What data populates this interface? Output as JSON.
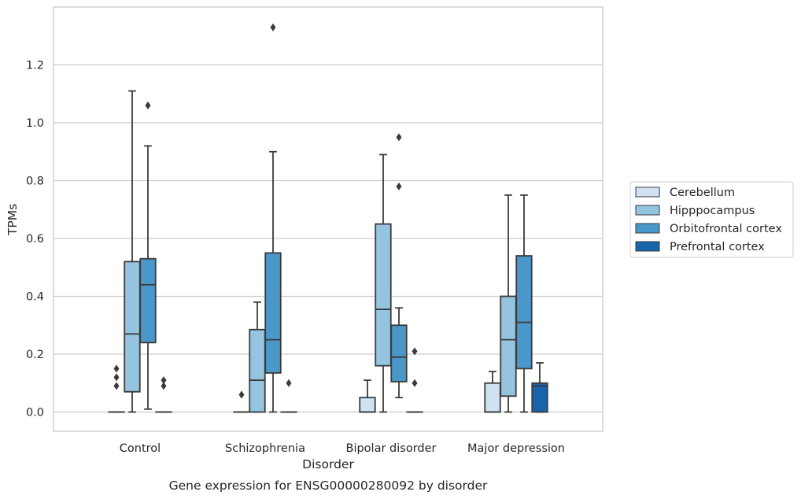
{
  "chart_data": {
    "type": "box",
    "caption": "Gene expression for ENSG00000280092 by disorder",
    "xlabel": "Disorder",
    "ylabel": "TPMs",
    "ylim": [
      -0.065,
      1.4
    ],
    "yticks": [
      0.0,
      0.2,
      0.4,
      0.6,
      0.8,
      1.0,
      1.2
    ],
    "ytick_labels": [
      "0.0",
      "0.2",
      "0.4",
      "0.6",
      "0.8",
      "1.0",
      "1.2"
    ],
    "grid": "horizontal",
    "legend_position": "right",
    "categories": [
      "Control",
      "Schizophrenia",
      "Bipolar disorder",
      "Major depression"
    ],
    "series": [
      {
        "name": "Cerebellum",
        "color": "#d0e1f2",
        "boxes": [
          {
            "category": "Control",
            "whislo": 0.0,
            "q1": 0.0,
            "median": 0.0,
            "q3": 0.0,
            "whishi": 0.0,
            "fliers": [
              0.09,
              0.12,
              0.15
            ]
          },
          {
            "category": "Schizophrenia",
            "whislo": 0.0,
            "q1": 0.0,
            "median": 0.0,
            "q3": 0.0,
            "whishi": 0.0,
            "fliers": [
              0.06
            ]
          },
          {
            "category": "Bipolar disorder",
            "whislo": 0.0,
            "q1": 0.0,
            "median": 0.0,
            "q3": 0.05,
            "whishi": 0.11,
            "fliers": []
          },
          {
            "category": "Major depression",
            "whislo": 0.0,
            "q1": 0.0,
            "median": 0.0,
            "q3": 0.1,
            "whishi": 0.14,
            "fliers": []
          }
        ]
      },
      {
        "name": "Hipppocampus",
        "color": "#94c4df",
        "boxes": [
          {
            "category": "Control",
            "whislo": 0.0,
            "q1": 0.07,
            "median": 0.27,
            "q3": 0.52,
            "whishi": 1.11,
            "fliers": []
          },
          {
            "category": "Schizophrenia",
            "whislo": 0.0,
            "q1": 0.0,
            "median": 0.11,
            "q3": 0.285,
            "whishi": 0.38,
            "fliers": []
          },
          {
            "category": "Bipolar disorder",
            "whislo": 0.0,
            "q1": 0.16,
            "median": 0.355,
            "q3": 0.65,
            "whishi": 0.89,
            "fliers": []
          },
          {
            "category": "Major depression",
            "whislo": 0.0,
            "q1": 0.055,
            "median": 0.25,
            "q3": 0.4,
            "whishi": 0.75,
            "fliers": []
          }
        ]
      },
      {
        "name": "Orbitofrontal cortex",
        "color": "#4a98c9",
        "boxes": [
          {
            "category": "Control",
            "whislo": 0.01,
            "q1": 0.24,
            "median": 0.44,
            "q3": 0.53,
            "whishi": 0.92,
            "fliers": [
              1.06
            ]
          },
          {
            "category": "Schizophrenia",
            "whislo": 0.0,
            "q1": 0.135,
            "median": 0.25,
            "q3": 0.55,
            "whishi": 0.9,
            "fliers": [
              1.33
            ]
          },
          {
            "category": "Bipolar disorder",
            "whislo": 0.05,
            "q1": 0.105,
            "median": 0.19,
            "q3": 0.3,
            "whishi": 0.36,
            "fliers": [
              0.78,
              0.95
            ]
          },
          {
            "category": "Major depression",
            "whislo": 0.0,
            "q1": 0.15,
            "median": 0.31,
            "q3": 0.54,
            "whishi": 0.75,
            "fliers": []
          }
        ]
      },
      {
        "name": "Prefrontal cortex",
        "color": "#1764ab",
        "boxes": [
          {
            "category": "Control",
            "whislo": 0.0,
            "q1": 0.0,
            "median": 0.0,
            "q3": 0.0,
            "whishi": 0.0,
            "fliers": [
              0.09,
              0.11
            ]
          },
          {
            "category": "Schizophrenia",
            "whislo": 0.0,
            "q1": 0.0,
            "median": 0.0,
            "q3": 0.0,
            "whishi": 0.0,
            "fliers": [
              0.1
            ]
          },
          {
            "category": "Bipolar disorder",
            "whislo": 0.0,
            "q1": 0.0,
            "median": 0.0,
            "q3": 0.0,
            "whishi": 0.0,
            "fliers": [
              0.1,
              0.21
            ]
          },
          {
            "category": "Major depression",
            "whislo": 0.0,
            "q1": 0.0,
            "median": 0.09,
            "q3": 0.1,
            "whishi": 0.17,
            "fliers": []
          }
        ]
      }
    ]
  }
}
